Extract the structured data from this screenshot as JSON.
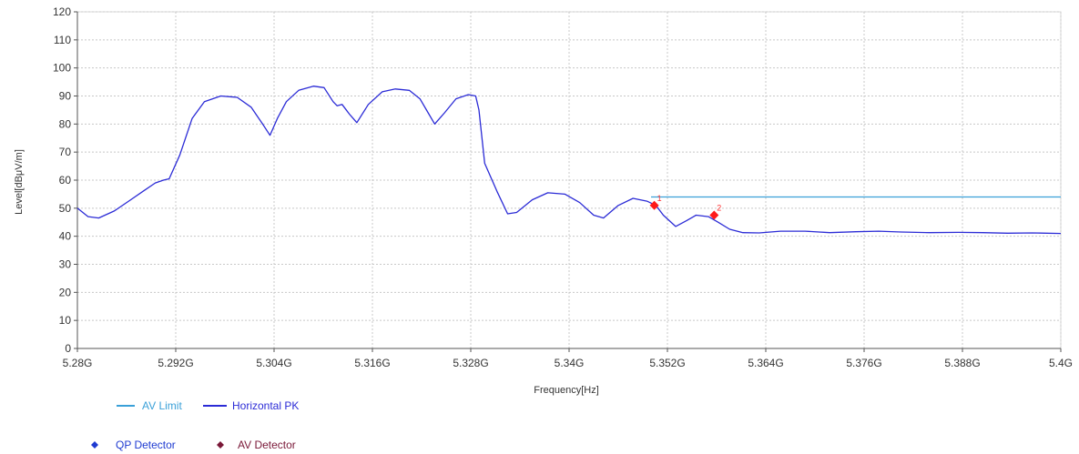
{
  "chart_data": {
    "type": "line",
    "xlabel": "Frequency[Hz]",
    "ylabel": "Level[dBμV/m]",
    "xlim": [
      5.28,
      5.4
    ],
    "ylim": [
      0,
      120
    ],
    "grid": true,
    "x_ticks": [
      {
        "value": 5.28,
        "label": "5.28G"
      },
      {
        "value": 5.292,
        "label": "5.292G"
      },
      {
        "value": 5.304,
        "label": "5.304G"
      },
      {
        "value": 5.316,
        "label": "5.316G"
      },
      {
        "value": 5.328,
        "label": "5.328G"
      },
      {
        "value": 5.34,
        "label": "5.34G"
      },
      {
        "value": 5.352,
        "label": "5.352G"
      },
      {
        "value": 5.364,
        "label": "5.364G"
      },
      {
        "value": 5.376,
        "label": "5.376G"
      },
      {
        "value": 5.388,
        "label": "5.388G"
      },
      {
        "value": 5.4,
        "label": "5.4G"
      }
    ],
    "y_ticks": [
      0,
      10,
      20,
      30,
      40,
      50,
      60,
      70,
      80,
      90,
      100,
      110,
      120
    ],
    "series": [
      {
        "name": "AV Limit",
        "color": "#3aa0d8",
        "x": [
          5.35,
          5.4
        ],
        "y": [
          54,
          54
        ]
      },
      {
        "name": "Horizontal PK",
        "color": "#2b2bd6",
        "x": [
          5.28,
          5.2813,
          5.2826,
          5.2845,
          5.2865,
          5.288,
          5.2895,
          5.2905,
          5.2912,
          5.2925,
          5.294,
          5.2955,
          5.2975,
          5.2995,
          5.3012,
          5.3026,
          5.3035,
          5.3044,
          5.3055,
          5.307,
          5.3088,
          5.3101,
          5.3112,
          5.3117,
          5.3123,
          5.3132,
          5.3141,
          5.3155,
          5.3172,
          5.3188,
          5.3205,
          5.3218,
          5.3228,
          5.3236,
          5.3248,
          5.3262,
          5.3277,
          5.3286,
          5.329,
          5.3297,
          5.3312,
          5.3325,
          5.3336,
          5.3355,
          5.3374,
          5.3395,
          5.3413,
          5.343,
          5.3442,
          5.346,
          5.3478,
          5.3495,
          5.3506,
          5.3515,
          5.353,
          5.3543,
          5.3555,
          5.357,
          5.3582,
          5.3596,
          5.3612,
          5.3632,
          5.3658,
          5.3688,
          5.3718,
          5.375,
          5.3778,
          5.3805,
          5.384,
          5.3875,
          5.3905,
          5.3935,
          5.3965,
          5.4
        ],
        "y": [
          50,
          47,
          46.5,
          49,
          53,
          56,
          59,
          60,
          60.5,
          69,
          82,
          88,
          90,
          89.5,
          86,
          80,
          76,
          82,
          88,
          92,
          93.5,
          93,
          88,
          86.5,
          87,
          83.5,
          80.5,
          87,
          91.5,
          92.5,
          92,
          89,
          84,
          80,
          84,
          89,
          90.5,
          90,
          85,
          66,
          56,
          48,
          48.5,
          53,
          55.5,
          55,
          52,
          47.5,
          46.5,
          51,
          53.5,
          52.5,
          51,
          47.5,
          43.5,
          45.5,
          47.5,
          47,
          45,
          42.5,
          41.3,
          41.2,
          41.8,
          41.8,
          41.3,
          41.6,
          41.8,
          41.5,
          41.3,
          41.4,
          41.3,
          41.1,
          41.2,
          41
        ]
      }
    ],
    "markers": [
      {
        "label": "1",
        "x": 5.3504,
        "y": 51,
        "color": "#ff1a1a"
      },
      {
        "label": "2",
        "x": 5.3577,
        "y": 47.5,
        "color": "#ff1a1a"
      }
    ]
  },
  "legend": {
    "items": [
      {
        "label": "AV Limit",
        "color": "#3aa0d8",
        "symbol": "line"
      },
      {
        "label": "Horizontal PK",
        "color": "#2b2bd6",
        "symbol": "line"
      },
      {
        "label": "QP Detector",
        "color": "#1f3bd1",
        "symbol": "diamond"
      },
      {
        "label": "AV Detector",
        "color": "#7a1838",
        "symbol": "diamond"
      }
    ]
  }
}
